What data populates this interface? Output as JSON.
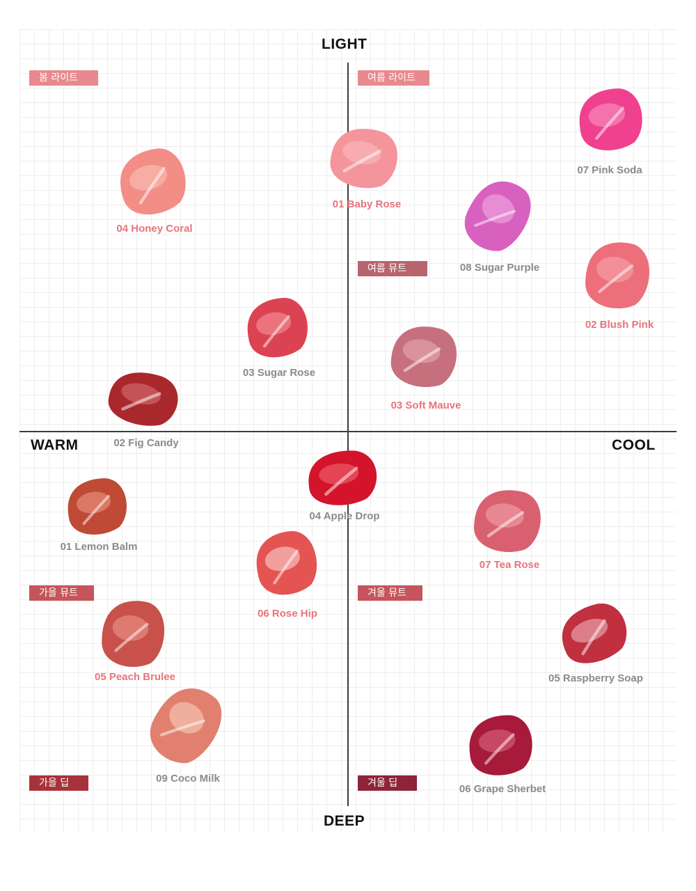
{
  "axes": {
    "top": "LIGHT",
    "bottom": "DEEP",
    "left": "WARM",
    "right": "COOL"
  },
  "quadrant_tags": [
    {
      "id": "spring-light",
      "label": "봄 라이트",
      "color": "#e8888f"
    },
    {
      "id": "summer-light",
      "label": "여름 라이트",
      "color": "#e8888f"
    },
    {
      "id": "summer-mute",
      "label": "여름 뮤트",
      "color": "#b8646f"
    },
    {
      "id": "autumn-mute",
      "label": "가을 뮤트",
      "color": "#c5555a"
    },
    {
      "id": "winter-mute",
      "label": "겨울 뮤트",
      "color": "#c5555a"
    },
    {
      "id": "autumn-deep",
      "label": "가을 딥",
      "color": "#a8323a"
    },
    {
      "id": "winter-deep",
      "label": "겨울 딥",
      "color": "#8e2438"
    }
  ],
  "products": [
    {
      "id": "pink-soda",
      "name": "07 Pink Soda",
      "label_color": "gray",
      "swatch_color": "#f0418f",
      "swatch_highlight": "#f99bc4",
      "icon": "lip-swatch-icon"
    },
    {
      "id": "baby-rose",
      "name": "01 Baby Rose",
      "label_color": "pink",
      "swatch_color": "#f4959b",
      "swatch_highlight": "#fbc0c2",
      "icon": "lip-swatch-icon"
    },
    {
      "id": "honey-coral",
      "name": "04 Honey Coral",
      "label_color": "pink",
      "swatch_color": "#f28e86",
      "swatch_highlight": "#fcc7bd",
      "icon": "lip-swatch-icon"
    },
    {
      "id": "sugar-purple",
      "name": "08 Sugar Purple",
      "label_color": "gray",
      "swatch_color": "#d861bf",
      "swatch_highlight": "#f2b3e6",
      "icon": "lip-swatch-icon"
    },
    {
      "id": "blush-pink",
      "name": "02 Blush Pink",
      "label_color": "pink",
      "swatch_color": "#ec6f7b",
      "swatch_highlight": "#f7aab0",
      "icon": "lip-swatch-icon"
    },
    {
      "id": "sugar-rose",
      "name": "03 Sugar Rose",
      "label_color": "gray",
      "swatch_color": "#dc4352",
      "swatch_highlight": "#f59aa0",
      "icon": "lip-swatch-icon"
    },
    {
      "id": "soft-mauve",
      "name": "03 Soft Mauve",
      "label_color": "pink",
      "swatch_color": "#c7707d",
      "swatch_highlight": "#e9b1b8",
      "icon": "lip-swatch-icon"
    },
    {
      "id": "fig-candy",
      "name": "02 Fig Candy",
      "label_color": "gray",
      "swatch_color": "#a8282c",
      "swatch_highlight": "#d8777a",
      "icon": "lip-swatch-icon"
    },
    {
      "id": "apple-drop",
      "name": "04 Apple Drop",
      "label_color": "gray",
      "swatch_color": "#d4142b",
      "swatch_highlight": "#f06d7a",
      "icon": "lip-swatch-icon"
    },
    {
      "id": "lemon-balm",
      "name": "01 Lemon Balm",
      "label_color": "gray",
      "swatch_color": "#bf4a35",
      "swatch_highlight": "#ef9f8b",
      "icon": "lip-swatch-icon"
    },
    {
      "id": "tea-rose",
      "name": "07 Tea Rose",
      "label_color": "pink",
      "swatch_color": "#d9616f",
      "swatch_highlight": "#f2a9b1",
      "icon": "lip-swatch-icon"
    },
    {
      "id": "rose-hip",
      "name": "06 Rose Hip",
      "label_color": "pink",
      "swatch_color": "#e45452",
      "swatch_highlight": "#fbdedb",
      "icon": "lip-swatch-icon"
    },
    {
      "id": "peach-brulee",
      "name": "05 Peach Brulee",
      "label_color": "pink",
      "swatch_color": "#c9514b",
      "swatch_highlight": "#ec9c93",
      "icon": "lip-swatch-icon"
    },
    {
      "id": "raspberry-soap",
      "name": "05 Raspberry Soap",
      "label_color": "gray",
      "swatch_color": "#c0303f",
      "swatch_highlight": "#f2bdc4",
      "icon": "lip-swatch-icon"
    },
    {
      "id": "coco-milk",
      "name": "09 Coco Milk",
      "label_color": "gray",
      "swatch_color": "#e1806f",
      "swatch_highlight": "#fcd3c4",
      "icon": "lip-swatch-icon"
    },
    {
      "id": "grape-sherbet",
      "name": "06 Grape Sherbet",
      "label_color": "gray",
      "swatch_color": "#a71a3a",
      "swatch_highlight": "#e06f86",
      "icon": "lip-swatch-icon"
    }
  ]
}
